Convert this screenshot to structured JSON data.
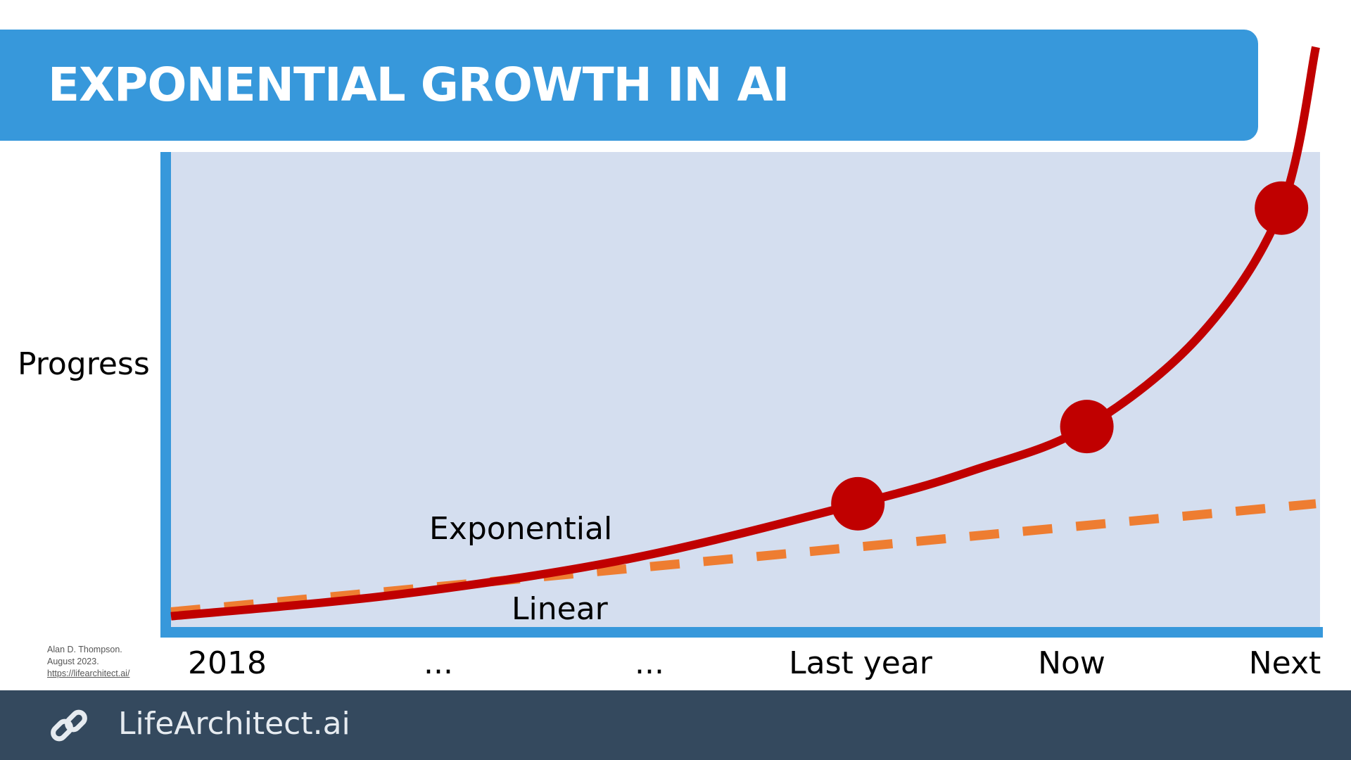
{
  "slide": {
    "title": "EXPONENTIAL GROWTH IN AI",
    "credit": {
      "author": "Alan D. Thompson.",
      "date": "August 2023.",
      "url": "https://lifearchitect.ai/"
    },
    "footer": {
      "brand": "LifeArchitect.ai",
      "icon": "link-icon"
    }
  },
  "colors": {
    "banner": "#3798db",
    "plot_background": "#d4deef",
    "axis": "#3798db",
    "exponential": "#c00000",
    "linear": "#ee7d31",
    "footer": "#34495e"
  },
  "chart_data": {
    "type": "line",
    "title": "",
    "xlabel": "",
    "ylabel": "Progress",
    "categories": [
      "2018",
      "...",
      "...",
      "Last year",
      "Now",
      "Next"
    ],
    "xlim": [
      0,
      5
    ],
    "ylim": [
      0,
      1
    ],
    "grid": false,
    "legend": "none",
    "series": [
      {
        "name": "Exponential",
        "style": "solid",
        "color": "#c00000",
        "x": [
          0,
          1,
          2,
          3,
          3.5,
          4,
          4.5,
          4.85,
          5
        ],
        "y": [
          0.01,
          0.06,
          0.14,
          0.265,
          0.34,
          0.44,
          0.65,
          0.935,
          1.3
        ],
        "markers": [
          {
            "x": 3,
            "y": 0.265
          },
          {
            "x": 4,
            "y": 0.44
          },
          {
            "x": 4.85,
            "y": 0.935
          }
        ]
      },
      {
        "name": "Linear",
        "style": "dashed",
        "color": "#ee7d31",
        "x": [
          0,
          5
        ],
        "y": [
          0.02,
          0.265
        ]
      }
    ]
  }
}
